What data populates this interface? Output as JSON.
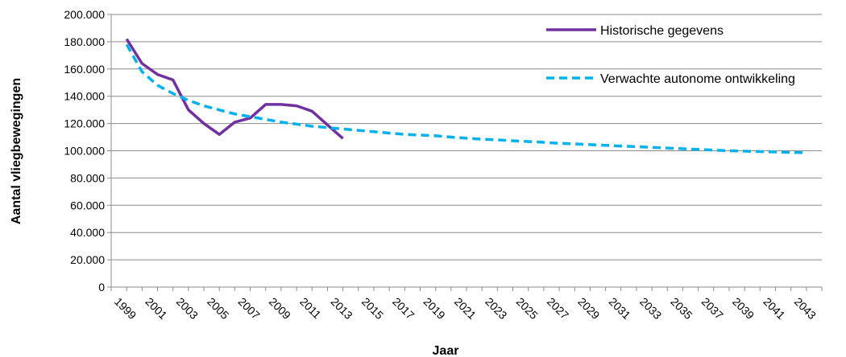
{
  "chart_data": {
    "type": "line",
    "xlabel": "Jaar",
    "ylabel": "Aantal vliegbewegingen",
    "x_ticks": [
      "1999",
      "2001",
      "2003",
      "2005",
      "2007",
      "2009",
      "2011",
      "2013",
      "2015",
      "2017",
      "2019",
      "2021",
      "2023",
      "2025",
      "2027",
      "2029",
      "2031",
      "2033",
      "2035",
      "2037",
      "2039",
      "2041",
      "2043"
    ],
    "y_ticks": [
      "0",
      "20.000",
      "40.000",
      "60.000",
      "80.000",
      "100.000",
      "120.000",
      "140.000",
      "160.000",
      "180.000",
      "200.000"
    ],
    "ylim": [
      0,
      200000
    ],
    "xlim": [
      1998,
      2044
    ],
    "grid": "horizontal",
    "legend_position": "top-right",
    "series": [
      {
        "name": "Historische gegevens",
        "color": "#7030a0",
        "style": "solid",
        "x": [
          1999,
          2000,
          2001,
          2002,
          2003,
          2004,
          2005,
          2006,
          2007,
          2008,
          2009,
          2010,
          2011,
          2012,
          2013
        ],
        "values": [
          182000,
          164000,
          156000,
          152000,
          130000,
          120000,
          112000,
          121000,
          124000,
          134000,
          134000,
          133000,
          129000,
          119000,
          109000
        ]
      },
      {
        "name": "Verwachte autonome ontwikkeling",
        "color": "#00b0f0",
        "style": "dashed",
        "x": [
          1999,
          2000,
          2001,
          2002,
          2003,
          2004,
          2005,
          2006,
          2007,
          2008,
          2009,
          2010,
          2011,
          2012,
          2013,
          2014,
          2015,
          2016,
          2017,
          2018,
          2019,
          2020,
          2021,
          2022,
          2023,
          2024,
          2025,
          2026,
          2027,
          2028,
          2029,
          2030,
          2031,
          2032,
          2033,
          2034,
          2035,
          2036,
          2037,
          2038,
          2039,
          2040,
          2041,
          2042,
          2043
        ],
        "values": [
          178000,
          158000,
          148000,
          142000,
          137000,
          133000,
          130000,
          127000,
          125000,
          123000,
          121000,
          119500,
          118000,
          117000,
          116000,
          115000,
          114000,
          113000,
          112000,
          111500,
          111000,
          110000,
          109200,
          108500,
          108000,
          107300,
          106800,
          106200,
          105500,
          105000,
          104500,
          104000,
          103500,
          103000,
          102500,
          102000,
          101500,
          101000,
          100500,
          100000,
          99700,
          99400,
          99100,
          98800,
          98500
        ]
      }
    ]
  }
}
